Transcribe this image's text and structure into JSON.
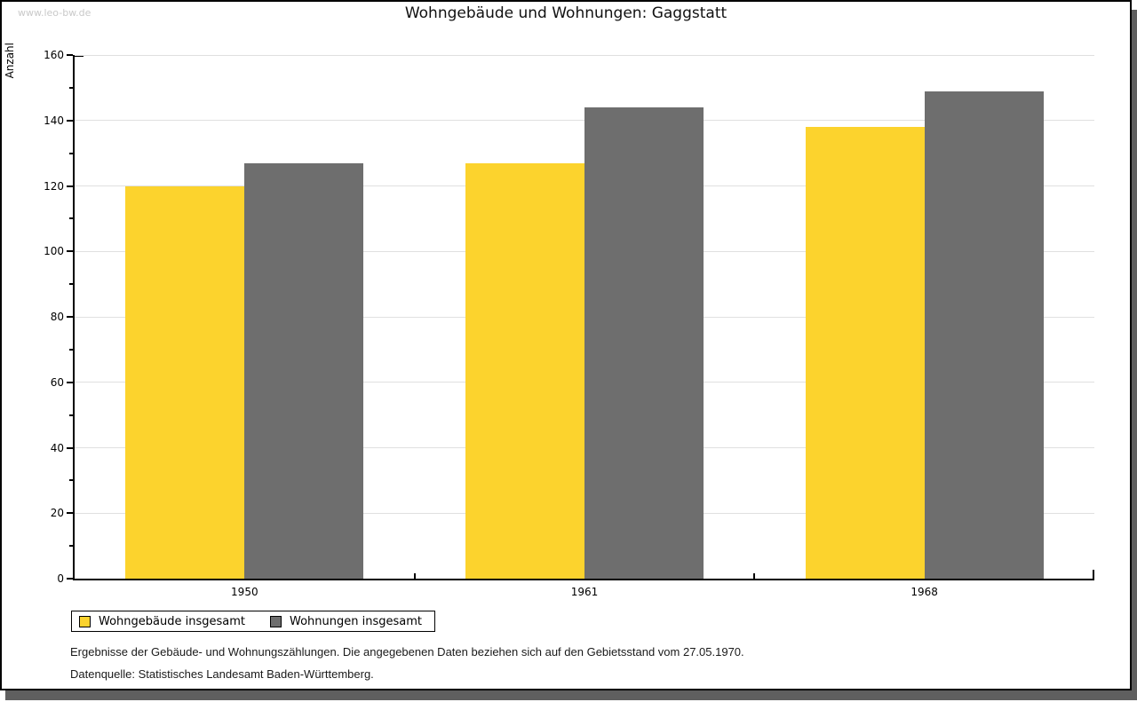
{
  "watermark": "www.leo-bw.de",
  "title": "Wohngebäude und Wohnungen: Gaggstatt",
  "chart_data": {
    "type": "bar",
    "title": "Wohngebäude und Wohnungen: Gaggstatt",
    "categories": [
      "1950",
      "1961",
      "1968"
    ],
    "series": [
      {
        "name": "Wohngebäude insgesamt",
        "color": "#fcd32d",
        "values": [
          120,
          127,
          138
        ]
      },
      {
        "name": "Wohnungen insgesamt",
        "color": "#6e6e6e",
        "values": [
          127,
          144,
          149
        ]
      }
    ],
    "xlabel": "",
    "ylabel": "Anzahl",
    "ylim": [
      0,
      160
    ],
    "ytick_step": 20,
    "yminor_step": 10,
    "grid": true,
    "legend_position": "bottom-left"
  },
  "footnotes": [
    "Ergebnisse der Gebäude- und Wohnungszählungen. Die angegebenen Daten beziehen sich auf den Gebietsstand vom 27.05.1970.",
    "Datenquelle: Statistisches Landesamt Baden-Württemberg."
  ],
  "colors": {
    "gridline": "#e0e0e0",
    "axis": "#000000",
    "watermark": "#c9c9c9",
    "frame_shadow": "#5f5f5f",
    "background": "#ffffff"
  }
}
